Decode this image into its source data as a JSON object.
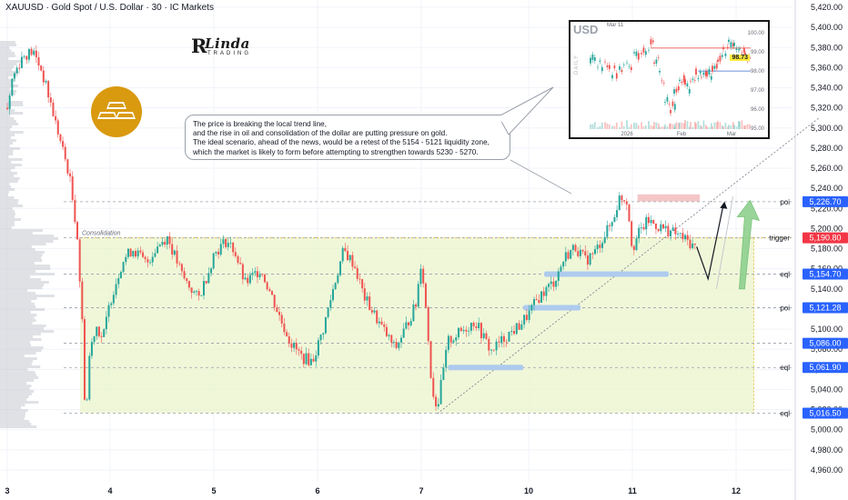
{
  "header": {
    "symbol": "XAUUSD",
    "name": "Gold Spot / U.S. Dollar",
    "timeframe": "30",
    "broker": "IC Markets",
    "text": "XAUUSD · Gold Spot / U.S. Dollar · 30 · IC Markets"
  },
  "logo": {
    "initial": "R",
    "main": "Linda",
    "sub": "TRADING"
  },
  "icon": {
    "name": "gold-bars-icon",
    "color": "#d99a10"
  },
  "callout": {
    "lines": [
      "The price is breaking the local trend line,",
      "and the rise in oil and consolidation of the dollar are putting pressure on gold.",
      "The ideal scenario, ahead of the news, would be a retest of the 5154 - 5121 liquidity zone,",
      "which the market is likely to form before attempting to strengthen towards 5230 - 5270."
    ]
  },
  "inset": {
    "title": "USD",
    "date_label": "Mar 11",
    "side_label": "DAILY",
    "current_price": "98.73",
    "axis_labels": [
      "100.00",
      "99.00",
      "98.00",
      "97.00",
      "96.00",
      "95.00"
    ],
    "x_labels": [
      "2026",
      "Feb",
      "Mar"
    ],
    "resistance": 99.2,
    "support": 98.0
  },
  "chart_data": {
    "type": "candlestick",
    "title": "XAUUSD · Gold Spot / U.S. Dollar · 30 · IC Markets",
    "ylim": [
      4954,
      5428
    ],
    "y_ticks": [
      "5,420.00",
      "5,400.00",
      "5,380.00",
      "5,360.00",
      "5,340.00",
      "5,320.00",
      "5,300.00",
      "5,280.00",
      "5,260.00",
      "5,240.00",
      "5,220.00",
      "5,200.00",
      "5,180.00",
      "5,160.00",
      "5,140.00",
      "5,120.00",
      "5,100.00",
      "5,080.00",
      "5,060.00",
      "5,040.00",
      "5,020.00",
      "5,000.00",
      "4,980.00",
      "4,960.00"
    ],
    "x_ticks": [
      "3",
      "4",
      "5",
      "6",
      "7",
      "10",
      "11",
      "12"
    ],
    "colors": {
      "up": "#26a69a",
      "down": "#ef5350",
      "zone": "#e9f3c9",
      "zone_border": "#e8c14a",
      "liquidity": "#aecbee",
      "supply": "#f5c6c8",
      "level_badge": "#2962ff",
      "current_badge": "#f23645"
    },
    "consolidation": {
      "label": "Consolidation",
      "top": 5190.8,
      "bottom": 5016.5
    },
    "levels": [
      {
        "label": "poi",
        "value": "5,226.70",
        "price": 5226.7,
        "badge": "blue"
      },
      {
        "label": "trigger",
        "value": "5,190.80",
        "price": 5190.8,
        "badge": "red"
      },
      {
        "label": "eql",
        "value": "5,154.70",
        "price": 5154.7,
        "badge": "blue"
      },
      {
        "label": "poi",
        "value": "5,121.28",
        "price": 5121.28,
        "badge": "blue"
      },
      {
        "label": "",
        "value": "5,086.00",
        "price": 5086.0,
        "badge": "blue"
      },
      {
        "label": "eql",
        "value": "5,061.90",
        "price": 5061.9,
        "badge": "blue"
      },
      {
        "label": "eql",
        "value": "5,016.50",
        "price": 5016.5,
        "badge": "blue"
      }
    ],
    "price_path": [
      [
        3.0,
        5320
      ],
      [
        3.05,
        5350
      ],
      [
        3.15,
        5372
      ],
      [
        3.25,
        5376
      ],
      [
        3.33,
        5358
      ],
      [
        3.42,
        5325
      ],
      [
        3.52,
        5285
      ],
      [
        3.6,
        5255
      ],
      [
        3.68,
        5195
      ],
      [
        3.74,
        5085
      ],
      [
        3.76,
        5002
      ],
      [
        3.8,
        5075
      ],
      [
        3.86,
        5105
      ],
      [
        3.93,
        5090
      ],
      [
        4.0,
        5128
      ],
      [
        4.12,
        5168
      ],
      [
        4.22,
        5180
      ],
      [
        4.35,
        5165
      ],
      [
        4.45,
        5182
      ],
      [
        4.55,
        5192
      ],
      [
        4.7,
        5152
      ],
      [
        4.85,
        5130
      ],
      [
        4.95,
        5158
      ],
      [
        5.0,
        5175
      ],
      [
        5.12,
        5188
      ],
      [
        5.2,
        5178
      ],
      [
        5.3,
        5145
      ],
      [
        5.45,
        5160
      ],
      [
        5.55,
        5135
      ],
      [
        5.65,
        5108
      ],
      [
        5.75,
        5085
      ],
      [
        5.85,
        5072
      ],
      [
        5.95,
        5068
      ],
      [
        6.05,
        5098
      ],
      [
        6.15,
        5140
      ],
      [
        6.25,
        5178
      ],
      [
        6.35,
        5165
      ],
      [
        6.45,
        5132
      ],
      [
        6.6,
        5105
      ],
      [
        6.75,
        5080
      ],
      [
        6.85,
        5102
      ],
      [
        6.95,
        5125
      ],
      [
        7.0,
        5170
      ],
      [
        7.05,
        5112
      ],
      [
        7.1,
        5040
      ],
      [
        7.15,
        5022
      ],
      [
        7.25,
        5088
      ],
      [
        7.35,
        5096
      ],
      [
        7.5,
        5108
      ],
      [
        7.65,
        5078
      ],
      [
        7.8,
        5094
      ],
      [
        7.9,
        5102
      ],
      [
        8.0,
        5115
      ],
      [
        8.1,
        5132
      ],
      [
        8.25,
        5148
      ],
      [
        8.35,
        5172
      ],
      [
        8.45,
        5182
      ],
      [
        8.55,
        5168
      ],
      [
        8.65,
        5178
      ],
      [
        8.72,
        5192
      ],
      [
        8.8,
        5205
      ],
      [
        8.88,
        5232
      ],
      [
        8.95,
        5228
      ],
      [
        9.0,
        5180
      ],
      [
        9.06,
        5195
      ],
      [
        9.15,
        5208
      ],
      [
        9.25,
        5202
      ],
      [
        9.35,
        5198
      ],
      [
        9.45,
        5193
      ],
      [
        9.55,
        5186
      ],
      [
        9.62,
        5180
      ]
    ],
    "annotations": {
      "liquidity_zones": [
        [
          5154.7,
          8.15,
          9.35
        ],
        [
          5121.28,
          7.95,
          8.5
        ],
        [
          5061.9,
          7.25,
          7.95
        ]
      ],
      "supply_zone": {
        "top": 5234,
        "bottom": 5227,
        "x_start": 9.05,
        "x_end": 9.65
      },
      "projection": [
        [
          9.62,
          5182
        ],
        [
          9.73,
          5150
        ],
        [
          9.88,
          5225
        ]
      ],
      "target_arrow": {
        "x": 10.1,
        "from": 5140,
        "to": 5228
      },
      "trendline": [
        [
          7.15,
          5016
        ],
        [
          10.8,
          5310
        ]
      ]
    }
  }
}
